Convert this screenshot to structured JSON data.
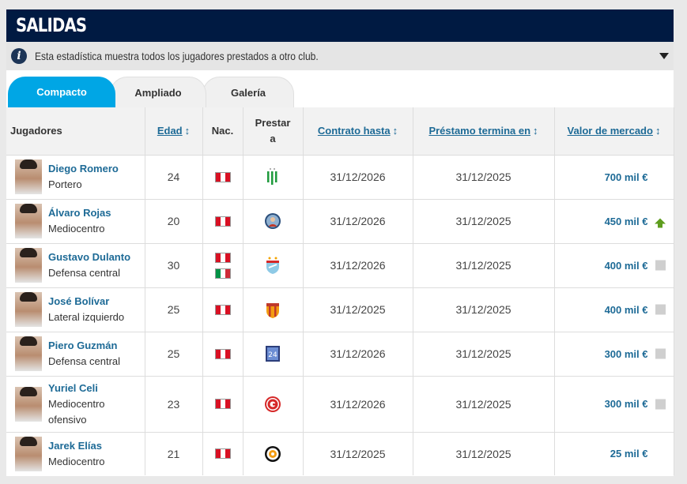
{
  "section_title": "SALIDAS",
  "info_text": "Esta estadística muestra todos los jugadores prestados a otro club.",
  "tabs": [
    {
      "label": "Compacto",
      "active": true
    },
    {
      "label": "Ampliado",
      "active": false
    },
    {
      "label": "Galería",
      "active": false
    }
  ],
  "columns": {
    "player": "Jugadores",
    "age": "Edad",
    "nat": "Nac.",
    "loaned_to": "Prestar a",
    "contract": "Contrato hasta",
    "loan_end": "Préstamo termina en",
    "value": "Valor de mercado",
    "sort_icon": "↕"
  },
  "rows": [
    {
      "name": "Diego Romero",
      "position": "Portero",
      "age": "24",
      "nationalities": [
        "pe"
      ],
      "club_crest": "green-white-striped-crest",
      "contract": "31/12/2026",
      "loan_end": "31/12/2025",
      "value": "700 mil €",
      "trend": "none"
    },
    {
      "name": "Álvaro Rojas",
      "position": "Mediocentro",
      "age": "20",
      "nationalities": [
        "pe"
      ],
      "club_crest": "round-portrait-crest",
      "contract": "31/12/2026",
      "loan_end": "31/12/2025",
      "value": "450 mil €",
      "trend": "up"
    },
    {
      "name": "Gustavo Dulanto",
      "position": "Defensa central",
      "age": "30",
      "nationalities": [
        "pe",
        "it"
      ],
      "club_crest": "sky-blue-shield-crest",
      "contract": "31/12/2026",
      "loan_end": "31/12/2025",
      "value": "400 mil €",
      "trend": "equal"
    },
    {
      "name": "José Bolívar",
      "position": "Lateral izquierdo",
      "age": "25",
      "nationalities": [
        "pe"
      ],
      "club_crest": "orange-red-striped-crest",
      "contract": "31/12/2025",
      "loan_end": "31/12/2025",
      "value": "400 mil €",
      "trend": "equal"
    },
    {
      "name": "Piero Guzmán",
      "position": "Defensa central",
      "age": "25",
      "nationalities": [
        "pe"
      ],
      "club_crest": "blue-square-crest",
      "contract": "31/12/2026",
      "loan_end": "31/12/2025",
      "value": "300 mil €",
      "trend": "equal"
    },
    {
      "name": "Yuriel Celi",
      "position": "Mediocentro ofensivo",
      "age": "23",
      "nationalities": [
        "pe"
      ],
      "club_crest": "red-g-circle-crest",
      "contract": "31/12/2026",
      "loan_end": "31/12/2025",
      "value": "300 mil €",
      "trend": "equal"
    },
    {
      "name": "Jarek Elías",
      "position": "Mediocentro",
      "age": "21",
      "nationalities": [
        "pe"
      ],
      "club_crest": "black-orange-ring-crest",
      "contract": "31/12/2025",
      "loan_end": "31/12/2025",
      "value": "25 mil €",
      "trend": "none"
    }
  ],
  "colors": {
    "header_bg": "#001a42",
    "tab_active": "#00a6e5",
    "link": "#1d6a96",
    "trend_up": "#5e9d1e",
    "trend_equal": "#cfcfcf"
  }
}
